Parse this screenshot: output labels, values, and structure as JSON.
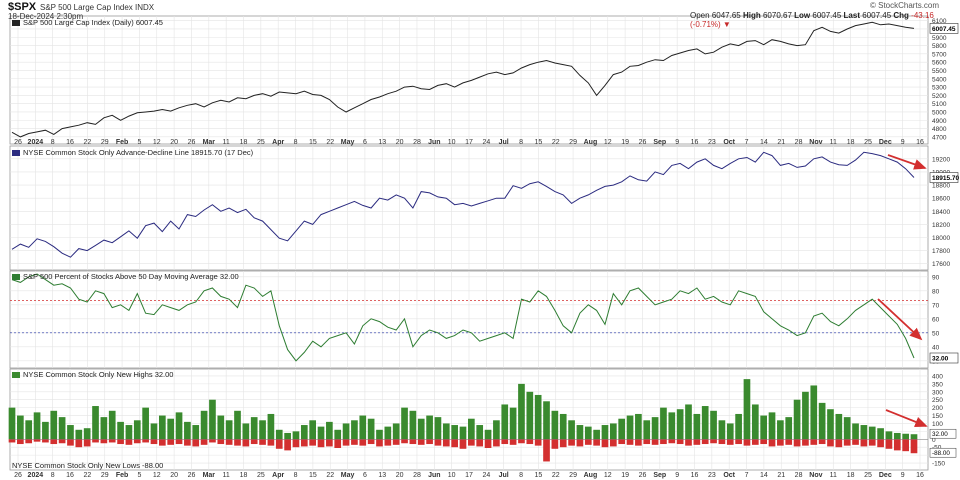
{
  "header": {
    "ticker": "$SPX",
    "description": "S&P 500 Large Cap Index INDX",
    "datetime": "18-Dec-2024 2:30pm",
    "open_label": "Open",
    "open": "6047.65",
    "high_label": "High",
    "high": "6070.67",
    "low_label": "Low",
    "low": "6007.45",
    "last_label": "Last",
    "last": "6007.45",
    "chg_label": "Chg",
    "chg": "-43.16 (-0.71%)",
    "credit": "© StockCharts.com"
  },
  "colors": {
    "price": "#222222",
    "ad_line": "#2b2b80",
    "pct_line": "#2e7d32",
    "highs": "#3a8a2e",
    "lows": "#d32f2f",
    "arrow": "#d32f2f",
    "ref_70": "#d32f2f",
    "ref_50": "#1e2ea0",
    "grid": "#e4e4e4"
  },
  "x_axis": {
    "tick_labels": [
      "26",
      "2024",
      "8",
      "16",
      "22",
      "29",
      "Feb",
      "5",
      "12",
      "20",
      "26",
      "Mar",
      "11",
      "18",
      "25",
      "Apr",
      "8",
      "15",
      "22",
      "May",
      "6",
      "13",
      "20",
      "28",
      "Jun",
      "10",
      "17",
      "24",
      "Jul",
      "8",
      "15",
      "22",
      "29",
      "Aug",
      "12",
      "19",
      "26",
      "Sep",
      "9",
      "16",
      "23",
      "Oct",
      "7",
      "14",
      "21",
      "28",
      "Nov",
      "11",
      "18",
      "25",
      "Dec",
      "9",
      "16"
    ],
    "bold_labels": [
      "2024",
      "Feb",
      "Mar",
      "Apr",
      "May",
      "Jun",
      "Jul",
      "Aug",
      "Sep",
      "Oct",
      "Nov",
      "Dec"
    ]
  },
  "chart_data": [
    {
      "type": "line",
      "title": "S&P 500 Large Cap Index (Daily) 6007.45",
      "last_value_label": "6007.45",
      "ylim": [
        4650,
        6120
      ],
      "y_ticks": [
        4700,
        4800,
        4900,
        5000,
        5100,
        5200,
        5300,
        5400,
        5500,
        5600,
        5700,
        5800,
        5900,
        6000,
        6100
      ],
      "grid": true,
      "series": [
        {
          "values": [
            4755,
            4700,
            4740,
            4760,
            4780,
            4730,
            4800,
            4820,
            4840,
            4870,
            4850,
            4930,
            4960,
            4900,
            4950,
            4990,
            5000,
            5010,
            5030,
            5010,
            5050,
            5080,
            5100,
            5060,
            5110,
            5140,
            5120,
            5170,
            5160,
            5200,
            5220,
            5190,
            5240,
            5230,
            5220,
            5250,
            5210,
            5200,
            5150,
            5060,
            5000,
            5050,
            5100,
            5150,
            5180,
            5220,
            5250,
            5300,
            5310,
            5280,
            5270,
            5320,
            5340,
            5300,
            5350,
            5380,
            5420,
            5460,
            5480,
            5450,
            5470,
            5530,
            5570,
            5600,
            5620,
            5590,
            5570,
            5550,
            5440,
            5350,
            5200,
            5320,
            5450,
            5480,
            5550,
            5560,
            5600,
            5630,
            5620,
            5680,
            5710,
            5740,
            5760,
            5700,
            5720,
            5780,
            5820,
            5800,
            5850,
            5860,
            5810,
            5870,
            5850,
            5820,
            5800,
            5810,
            5980,
            6020,
            5970,
            5950,
            6000,
            6040,
            6060,
            6080,
            6050,
            6060,
            6040,
            6020,
            6007
          ]
        }
      ]
    },
    {
      "type": "line",
      "title": "NYSE Common Stock Only Advance-Decline Line 18915.70 (17 Dec)",
      "last_value_label": "18915.70",
      "ylim": [
        17550,
        19350
      ],
      "y_ticks": [
        17600,
        17800,
        18000,
        18200,
        18400,
        18600,
        18800,
        19000,
        19200
      ],
      "grid": true,
      "series": [
        {
          "values": [
            17820,
            17900,
            17850,
            17980,
            17940,
            17860,
            17760,
            17700,
            17830,
            17800,
            17880,
            17960,
            17920,
            18010,
            18100,
            17990,
            18180,
            18220,
            18090,
            18250,
            18130,
            18350,
            18320,
            18420,
            18500,
            18400,
            18450,
            18380,
            18430,
            18300,
            18250,
            18120,
            17990,
            17950,
            18100,
            18250,
            18200,
            18350,
            18400,
            18450,
            18500,
            18550,
            18490,
            18450,
            18600,
            18570,
            18650,
            18600,
            18450,
            18700,
            18680,
            18620,
            18600,
            18500,
            18520,
            18480,
            18520,
            18560,
            18600,
            18600,
            18790,
            18750,
            18820,
            18850,
            18780,
            18700,
            18650,
            18520,
            18600,
            18650,
            18720,
            18780,
            18800,
            18850,
            18940,
            18880,
            18860,
            19000,
            18960,
            19100,
            19130,
            19050,
            19150,
            19200,
            19100,
            19050,
            19130,
            19200,
            19220,
            19150,
            19300,
            19250,
            19100,
            19130,
            19070,
            19090,
            19200,
            19230,
            19150,
            19110,
            19100,
            19180,
            19300,
            19280,
            19250,
            19200,
            19150,
            19050,
            18915
          ]
        }
      ]
    },
    {
      "type": "line",
      "title": "S&P 500 Percent of Stocks Above 50 Day Moving Average 32.00",
      "last_value_label": "32.00",
      "ylim": [
        27,
        92
      ],
      "y_ticks": [
        30,
        40,
        50,
        60,
        70,
        80,
        90
      ],
      "reference_lines": [
        73,
        50
      ],
      "grid": true,
      "series": [
        {
          "values": [
            88,
            86,
            90,
            92,
            88,
            84,
            85,
            82,
            74,
            72,
            80,
            78,
            68,
            70,
            66,
            78,
            64,
            63,
            70,
            68,
            66,
            70,
            72,
            80,
            82,
            76,
            74,
            68,
            84,
            82,
            76,
            80,
            55,
            38,
            30,
            36,
            44,
            40,
            46,
            48,
            50,
            42,
            55,
            60,
            58,
            54,
            52,
            60,
            40,
            48,
            52,
            50,
            46,
            48,
            52,
            50,
            44,
            46,
            48,
            50,
            46,
            74,
            72,
            80,
            76,
            66,
            55,
            50,
            64,
            70,
            66,
            56,
            78,
            70,
            80,
            82,
            76,
            70,
            72,
            74,
            80,
            78,
            82,
            74,
            76,
            72,
            70,
            80,
            78,
            76,
            65,
            60,
            55,
            52,
            48,
            50,
            62,
            64,
            58,
            55,
            60,
            66,
            70,
            74,
            68,
            62,
            56,
            46,
            32
          ]
        }
      ]
    },
    {
      "type": "bar",
      "title": "NYSE Common Stock Only New Highs 32.00",
      "lows_title": "NYSE Common Stock Only New Lows -88.00",
      "highs_value_label": "32.00",
      "lows_value_label": "-88.00",
      "ylim": [
        -175,
        425
      ],
      "y_ticks": [
        -150,
        -100,
        -50,
        0,
        50,
        100,
        150,
        200,
        250,
        300,
        350,
        400
      ],
      "grid": true,
      "series": [
        {
          "name": "NYSE Common Stock Only New Highs",
          "values": [
            200,
            150,
            120,
            170,
            110,
            180,
            140,
            90,
            60,
            70,
            210,
            140,
            180,
            110,
            90,
            120,
            200,
            100,
            150,
            130,
            170,
            110,
            90,
            180,
            250,
            150,
            120,
            180,
            100,
            140,
            120,
            160,
            60,
            40,
            50,
            90,
            120,
            80,
            110,
            60,
            100,
            120,
            150,
            130,
            60,
            80,
            100,
            200,
            180,
            130,
            150,
            140,
            100,
            90,
            80,
            130,
            90,
            60,
            120,
            220,
            200,
            350,
            300,
            280,
            240,
            180,
            160,
            120,
            90,
            80,
            60,
            90,
            100,
            130,
            150,
            160,
            120,
            140,
            200,
            170,
            190,
            220,
            160,
            210,
            180,
            120,
            100,
            160,
            380,
            220,
            150,
            170,
            120,
            140,
            250,
            300,
            340,
            230,
            190,
            160,
            140,
            100,
            90,
            80,
            70,
            50,
            40,
            35,
            32
          ]
        },
        {
          "name": "NYSE Common Stock Only New Lows",
          "values": [
            -20,
            -30,
            -25,
            -15,
            -20,
            -30,
            -25,
            -40,
            -50,
            -45,
            -20,
            -25,
            -20,
            -30,
            -35,
            -25,
            -20,
            -30,
            -40,
            -35,
            -30,
            -40,
            -45,
            -35,
            -20,
            -30,
            -35,
            -40,
            -45,
            -30,
            -35,
            -40,
            -60,
            -70,
            -50,
            -45,
            -40,
            -50,
            -45,
            -55,
            -40,
            -35,
            -40,
            -30,
            -45,
            -40,
            -35,
            -25,
            -30,
            -35,
            -30,
            -40,
            -45,
            -50,
            -60,
            -40,
            -45,
            -55,
            -45,
            -30,
            -35,
            -25,
            -30,
            -40,
            -140,
            -60,
            -50,
            -40,
            -45,
            -35,
            -40,
            -50,
            -45,
            -30,
            -35,
            -40,
            -30,
            -35,
            -30,
            -25,
            -30,
            -40,
            -35,
            -30,
            -25,
            -30,
            -35,
            -30,
            -40,
            -35,
            -30,
            -45,
            -40,
            -35,
            -45,
            -40,
            -35,
            -30,
            -45,
            -50,
            -40,
            -35,
            -45,
            -40,
            -50,
            -60,
            -70,
            -75,
            -88
          ]
        }
      ]
    }
  ]
}
